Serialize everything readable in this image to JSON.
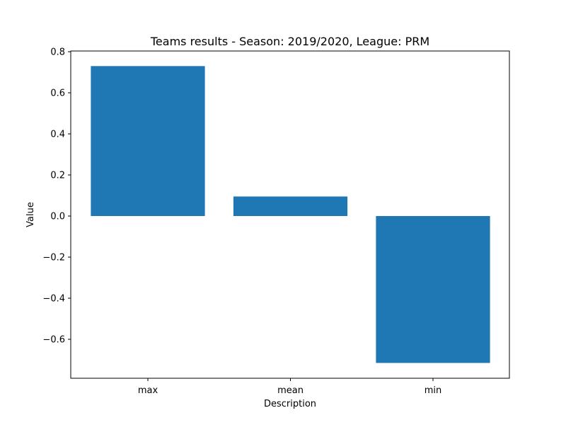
{
  "chart_data": {
    "type": "bar",
    "title": "Teams results - Season: 2019/2020, League: PRM",
    "xlabel": "Description",
    "ylabel": "Value",
    "categories": [
      "max",
      "mean",
      "min"
    ],
    "values": [
      0.73,
      0.095,
      -0.715
    ],
    "ylim": [
      -0.8,
      0.8
    ],
    "yticks": [
      -0.6,
      -0.4,
      -0.2,
      0.0,
      0.2,
      0.4,
      0.6,
      0.8
    ],
    "ytick_labels": [
      "−0.6",
      "−0.4",
      "−0.2",
      "0.0",
      "0.2",
      "0.4",
      "0.6",
      "0.8"
    ],
    "bar_color": "#1f77b4",
    "grid": false,
    "legend": "none"
  }
}
